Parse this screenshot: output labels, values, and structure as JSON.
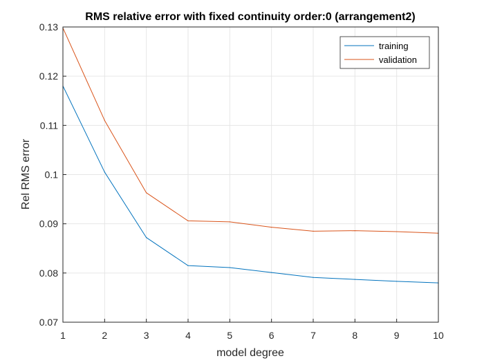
{
  "chart_data": {
    "type": "line",
    "title": "RMS relative error with fixed continuity order:0 (arrangement2)",
    "xlabel": "model degree",
    "ylabel": "Rel RMS error",
    "x": [
      1,
      2,
      3,
      4,
      5,
      6,
      7,
      8,
      9,
      10
    ],
    "xlim": [
      1,
      10
    ],
    "ylim": [
      0.07,
      0.13
    ],
    "xticks": [
      "1",
      "2",
      "3",
      "4",
      "5",
      "6",
      "7",
      "8",
      "9",
      "10"
    ],
    "yticks": [
      "0.07",
      "0.08",
      "0.09",
      "0.1",
      "0.11",
      "0.12",
      "0.13"
    ],
    "grid": true,
    "legend_position": "top-right",
    "series": [
      {
        "name": "training",
        "color": "#0072BD",
        "values": [
          0.118,
          0.1005,
          0.0872,
          0.0815,
          0.0811,
          0.0801,
          0.0791,
          0.0787,
          0.0783,
          0.078
        ]
      },
      {
        "name": "validation",
        "color": "#D95319",
        "values": [
          0.1298,
          0.111,
          0.0963,
          0.0906,
          0.0904,
          0.0893,
          0.0885,
          0.0886,
          0.0884,
          0.0881
        ]
      }
    ]
  }
}
